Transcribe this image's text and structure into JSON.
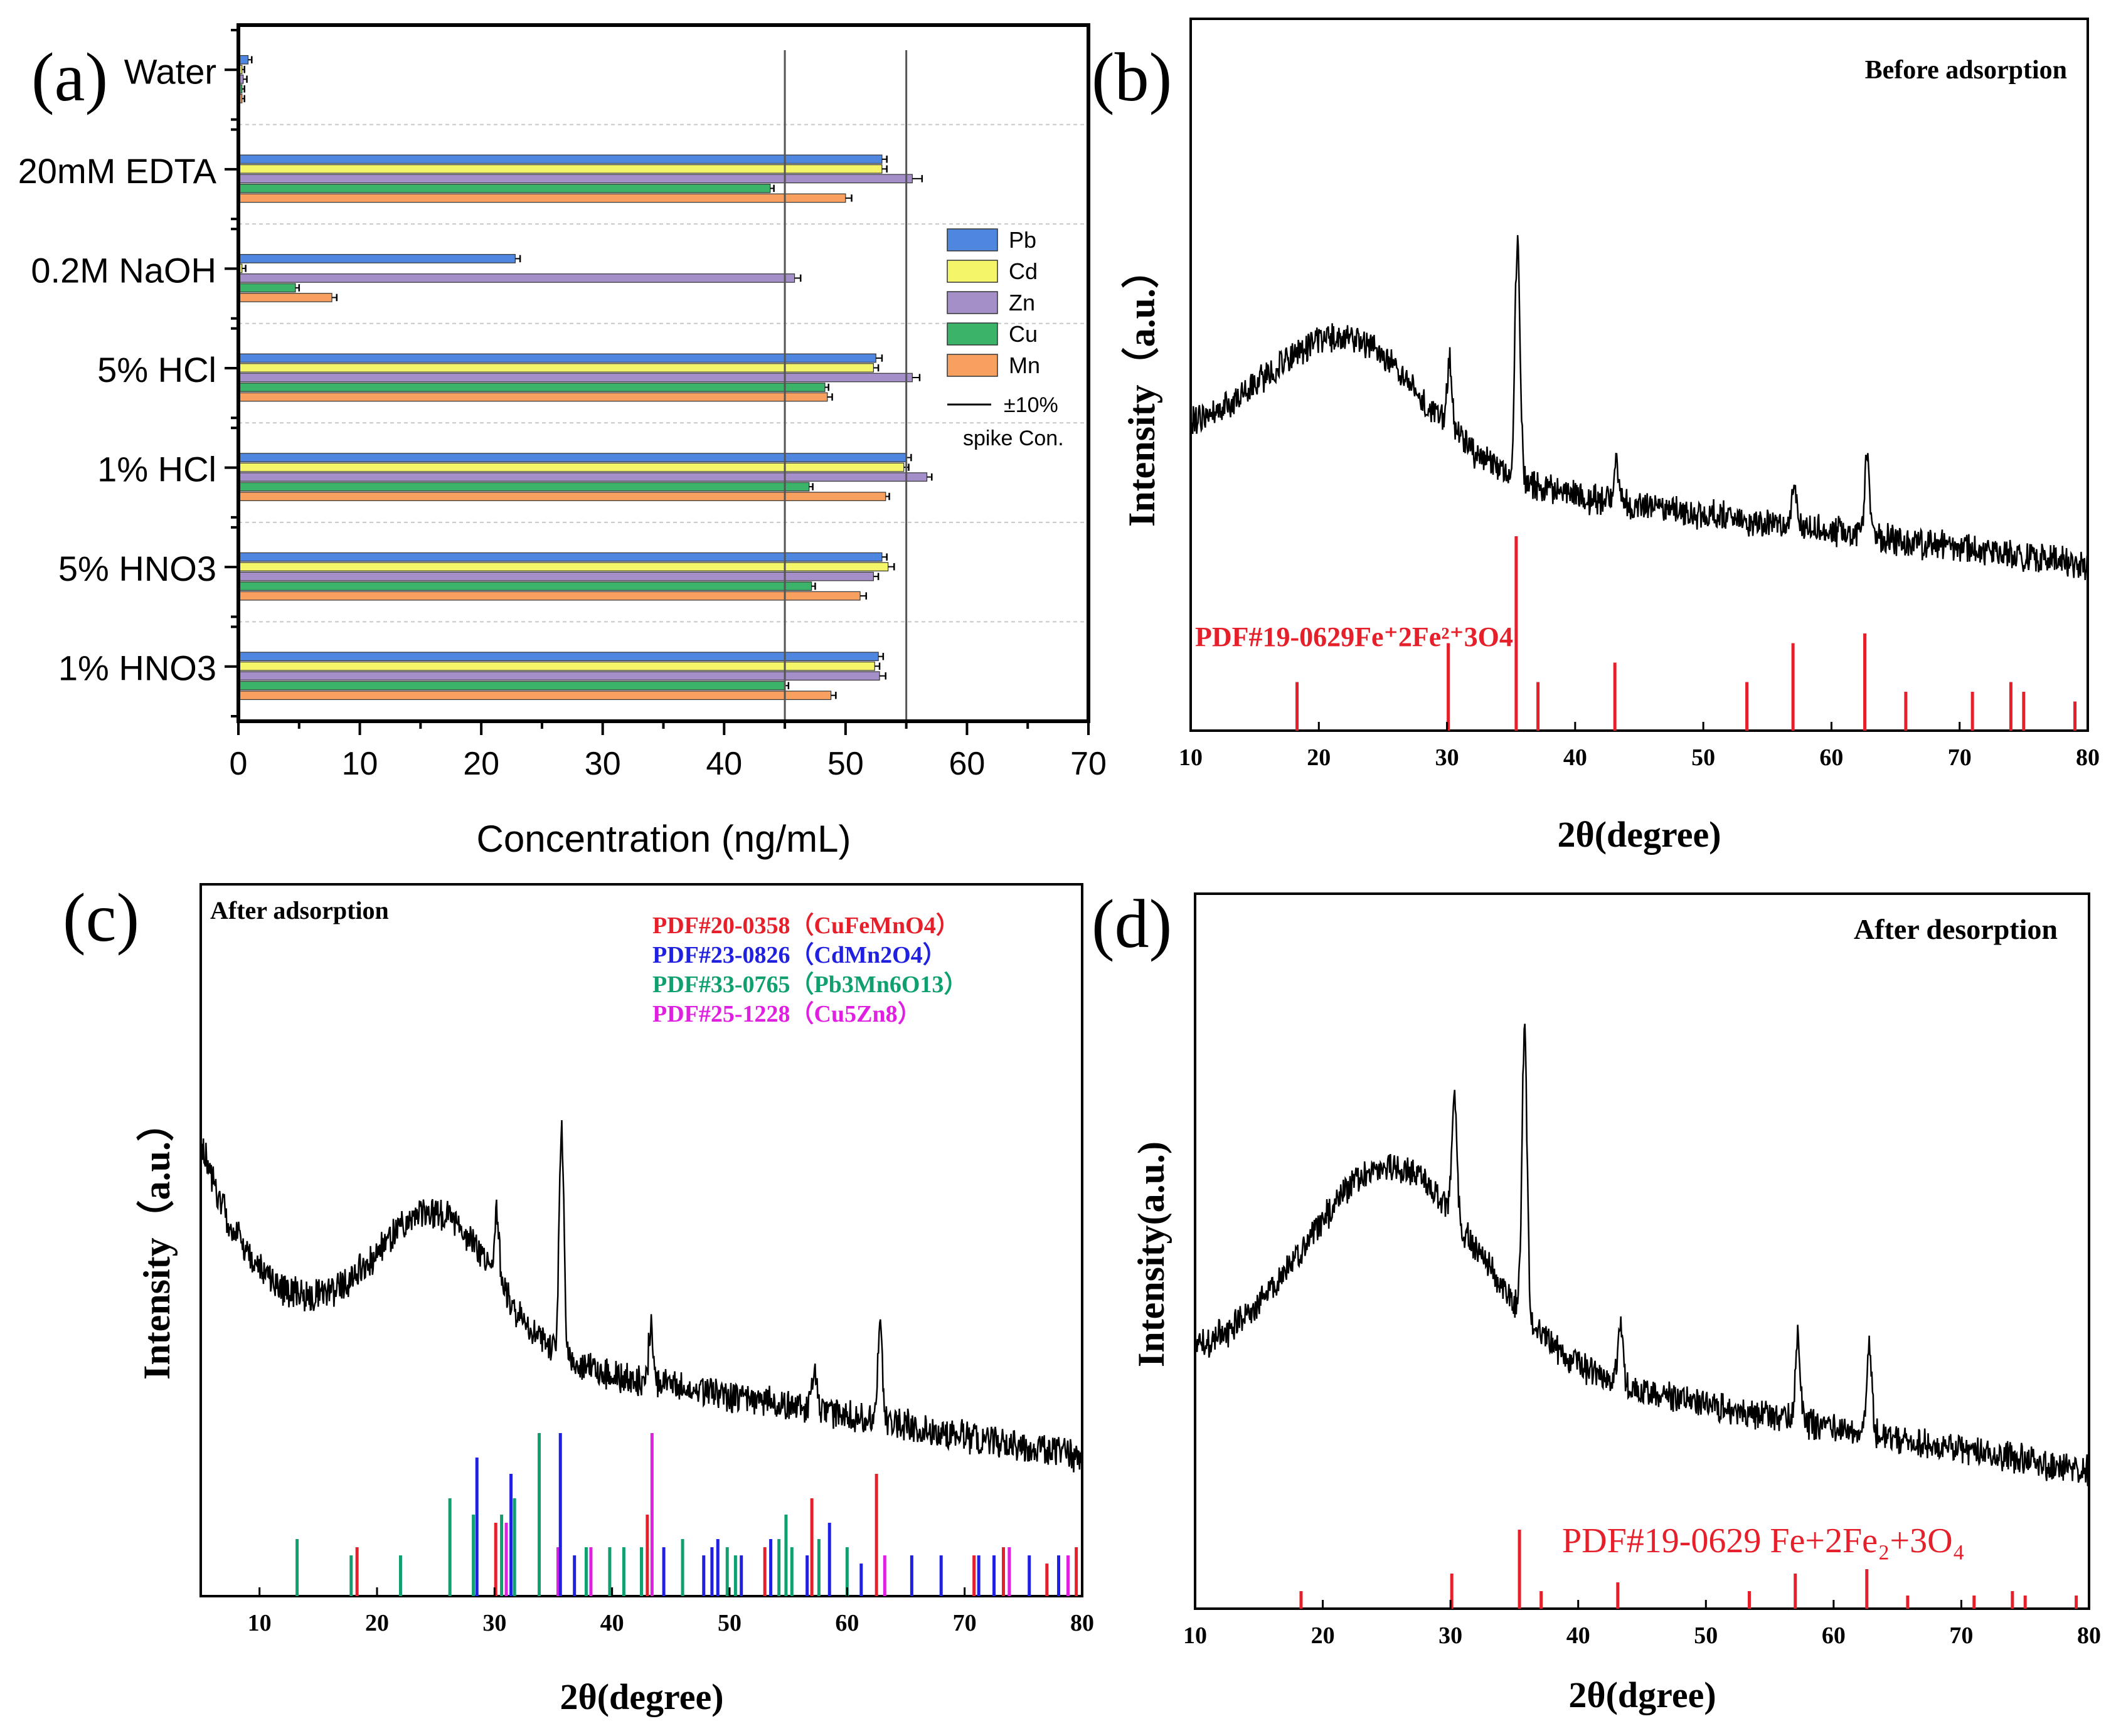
{
  "panel_a": {
    "panel_label": "(a)",
    "xlabel": "Concentration (ng/mL)",
    "legend_spike": "±10%",
    "legend_spike2": "spike Con.",
    "chart_data": {
      "type": "bar",
      "orientation": "horizontal",
      "categories": [
        "Water",
        "20mM EDTA",
        "0.2M NaOH",
        "5% HCl",
        "1% HCl",
        "5% HNO3",
        "1% HNO3"
      ],
      "series": [
        {
          "name": "Pb",
          "color": "#4F86E0",
          "values": [
            0.8,
            53,
            22.8,
            52.5,
            55,
            53,
            52.7
          ],
          "errors": [
            0.3,
            0.4,
            0.4,
            0.5,
            0.4,
            0.4,
            0.4
          ]
        },
        {
          "name": "Cd",
          "color": "#F5F56A",
          "values": [
            0.3,
            53,
            0.3,
            52.3,
            54.8,
            53.5,
            52.4
          ],
          "errors": [
            0.2,
            0.4,
            0.3,
            0.4,
            0.4,
            0.5,
            0.4
          ]
        },
        {
          "name": "Zn",
          "color": "#A48FC9",
          "values": [
            0.4,
            55.5,
            45.8,
            55.5,
            56.7,
            52.3,
            52.8
          ],
          "errors": [
            0.3,
            0.8,
            0.5,
            0.6,
            0.4,
            0.4,
            0.5
          ]
        },
        {
          "name": "Cu",
          "color": "#3BB46A",
          "values": [
            0.3,
            43.8,
            4.7,
            48.3,
            47,
            47.2,
            45
          ],
          "errors": [
            0.2,
            0.3,
            0.3,
            0.3,
            0.3,
            0.3,
            0.3
          ]
        },
        {
          "name": "Mn",
          "color": "#F7A060",
          "values": [
            0.3,
            50,
            7.7,
            48.5,
            53.3,
            51.2,
            48.8
          ],
          "errors": [
            0.2,
            0.5,
            0.4,
            0.4,
            0.3,
            0.5,
            0.4
          ]
        }
      ],
      "reference_lines": [
        45,
        55
      ],
      "xlim": [
        0,
        70
      ],
      "xticks": [
        "0",
        "10",
        "20",
        "30",
        "40",
        "50",
        "60",
        "70"
      ],
      "legend_placement": "right"
    }
  },
  "panel_b": {
    "panel_label": "(b)",
    "title": "Before adsorption",
    "ylabel": "Intensity（a.u.）",
    "xlabel": "2θ(degree)",
    "ref_label": "PDF#19-0629Fe⁺2Fe²⁺3O4",
    "chart_data": {
      "type": "line",
      "xlim": [
        10,
        80
      ],
      "xticks": [
        "10",
        "20",
        "30",
        "40",
        "50",
        "60",
        "70",
        "80"
      ],
      "peaks": [
        {
          "x": 30.2,
          "h": 0.28
        },
        {
          "x": 35.5,
          "h": 1.0
        },
        {
          "x": 43.2,
          "h": 0.18
        },
        {
          "x": 57.1,
          "h": 0.2
        },
        {
          "x": 62.8,
          "h": 0.35
        }
      ],
      "reference_lines": [
        {
          "x": 18.3,
          "h": 0.25,
          "color": "#E5202A"
        },
        {
          "x": 30.1,
          "h": 0.45,
          "color": "#E5202A"
        },
        {
          "x": 35.4,
          "h": 1.0,
          "color": "#E5202A"
        },
        {
          "x": 37.1,
          "h": 0.25,
          "color": "#E5202A"
        },
        {
          "x": 43.1,
          "h": 0.35,
          "color": "#E5202A"
        },
        {
          "x": 53.4,
          "h": 0.25,
          "color": "#E5202A"
        },
        {
          "x": 57.0,
          "h": 0.45,
          "color": "#E5202A"
        },
        {
          "x": 62.6,
          "h": 0.5,
          "color": "#E5202A"
        },
        {
          "x": 65.8,
          "h": 0.2,
          "color": "#E5202A"
        },
        {
          "x": 71.0,
          "h": 0.2,
          "color": "#E5202A"
        },
        {
          "x": 74.0,
          "h": 0.25,
          "color": "#E5202A"
        },
        {
          "x": 75.0,
          "h": 0.2,
          "color": "#E5202A"
        },
        {
          "x": 79.0,
          "h": 0.15,
          "color": "#E5202A"
        }
      ]
    }
  },
  "panel_c": {
    "panel_label": "(c)",
    "title": "After adsorption",
    "ylabel": "Intensity（a.u.）",
    "xlabel": "2θ(degree)",
    "legend": [
      {
        "text": "PDF#20-0358（CuFeMnO4）",
        "color": "#E5202A"
      },
      {
        "text": "PDF#23-0826（CdMn2O4）",
        "color": "#2020E0"
      },
      {
        "text": "PDF#33-0765（Pb3Mn6O13）",
        "color": "#10A070"
      },
      {
        "text": "PDF#25-1228（Cu5Zn8）",
        "color": "#E020E0"
      }
    ],
    "chart_data": {
      "type": "line",
      "xlim": [
        5,
        80
      ],
      "xticks": [
        "10",
        "20",
        "30",
        "40",
        "50",
        "60",
        "70",
        "80"
      ],
      "peaks": [
        {
          "x": 30.2,
          "h": 0.25
        },
        {
          "x": 35.7,
          "h": 0.85
        },
        {
          "x": 43.3,
          "h": 0.2
        },
        {
          "x": 57.2,
          "h": 0.15
        },
        {
          "x": 62.8,
          "h": 0.35
        }
      ],
      "reference_lines": [
        {
          "x": 13.2,
          "h": 0.35,
          "color": "#10A070"
        },
        {
          "x": 17.8,
          "h": 0.25,
          "color": "#10A070"
        },
        {
          "x": 18.3,
          "h": 0.3,
          "color": "#E5202A"
        },
        {
          "x": 22.0,
          "h": 0.25,
          "color": "#10A070"
        },
        {
          "x": 26.2,
          "h": 0.6,
          "color": "#10A070"
        },
        {
          "x": 28.2,
          "h": 0.5,
          "color": "#10A070"
        },
        {
          "x": 28.5,
          "h": 0.85,
          "color": "#2020E0"
        },
        {
          "x": 30.1,
          "h": 0.45,
          "color": "#E5202A"
        },
        {
          "x": 30.6,
          "h": 0.5,
          "color": "#10A070"
        },
        {
          "x": 31.0,
          "h": 0.45,
          "color": "#E020E0"
        },
        {
          "x": 31.4,
          "h": 0.75,
          "color": "#2020E0"
        },
        {
          "x": 31.7,
          "h": 0.6,
          "color": "#10A070"
        },
        {
          "x": 33.8,
          "h": 1.0,
          "color": "#10A070"
        },
        {
          "x": 35.4,
          "h": 0.3,
          "color": "#E020E0"
        },
        {
          "x": 35.6,
          "h": 1.0,
          "color": "#2020E0"
        },
        {
          "x": 36.8,
          "h": 0.25,
          "color": "#2020E0"
        },
        {
          "x": 37.8,
          "h": 0.3,
          "color": "#10A070"
        },
        {
          "x": 38.2,
          "h": 0.3,
          "color": "#E020E0"
        },
        {
          "x": 39.8,
          "h": 0.3,
          "color": "#10A070"
        },
        {
          "x": 41.0,
          "h": 0.3,
          "color": "#10A070"
        },
        {
          "x": 42.5,
          "h": 0.3,
          "color": "#10A070"
        },
        {
          "x": 43.0,
          "h": 0.5,
          "color": "#E5202A"
        },
        {
          "x": 43.4,
          "h": 1.0,
          "color": "#E020E0"
        },
        {
          "x": 44.4,
          "h": 0.3,
          "color": "#2020E0"
        },
        {
          "x": 46.0,
          "h": 0.35,
          "color": "#10A070"
        },
        {
          "x": 47.8,
          "h": 0.25,
          "color": "#2020E0"
        },
        {
          "x": 48.5,
          "h": 0.3,
          "color": "#2020E0"
        },
        {
          "x": 49.0,
          "h": 0.35,
          "color": "#2020E0"
        },
        {
          "x": 49.8,
          "h": 0.3,
          "color": "#10A070"
        },
        {
          "x": 50.5,
          "h": 0.25,
          "color": "#10A070"
        },
        {
          "x": 51.0,
          "h": 0.25,
          "color": "#2020E0"
        },
        {
          "x": 53.0,
          "h": 0.3,
          "color": "#E5202A"
        },
        {
          "x": 53.5,
          "h": 0.35,
          "color": "#2020E0"
        },
        {
          "x": 54.2,
          "h": 0.35,
          "color": "#10A070"
        },
        {
          "x": 54.8,
          "h": 0.5,
          "color": "#10A070"
        },
        {
          "x": 55.3,
          "h": 0.3,
          "color": "#10A070"
        },
        {
          "x": 56.6,
          "h": 0.25,
          "color": "#2020E0"
        },
        {
          "x": 57.0,
          "h": 0.6,
          "color": "#E5202A"
        },
        {
          "x": 57.6,
          "h": 0.35,
          "color": "#10A070"
        },
        {
          "x": 58.5,
          "h": 0.45,
          "color": "#2020E0"
        },
        {
          "x": 60.0,
          "h": 0.3,
          "color": "#10A070"
        },
        {
          "x": 61.2,
          "h": 0.2,
          "color": "#2020E0"
        },
        {
          "x": 62.5,
          "h": 0.75,
          "color": "#E5202A"
        },
        {
          "x": 63.2,
          "h": 0.25,
          "color": "#E020E0"
        },
        {
          "x": 65.5,
          "h": 0.25,
          "color": "#2020E0"
        },
        {
          "x": 68.0,
          "h": 0.25,
          "color": "#2020E0"
        },
        {
          "x": 70.8,
          "h": 0.25,
          "color": "#E5202A"
        },
        {
          "x": 71.2,
          "h": 0.25,
          "color": "#2020E0"
        },
        {
          "x": 72.5,
          "h": 0.25,
          "color": "#2020E0"
        },
        {
          "x": 73.3,
          "h": 0.3,
          "color": "#E5202A"
        },
        {
          "x": 73.8,
          "h": 0.3,
          "color": "#E020E0"
        },
        {
          "x": 75.5,
          "h": 0.25,
          "color": "#2020E0"
        },
        {
          "x": 77.0,
          "h": 0.2,
          "color": "#E5202A"
        },
        {
          "x": 78.0,
          "h": 0.25,
          "color": "#2020E0"
        },
        {
          "x": 78.8,
          "h": 0.25,
          "color": "#E020E0"
        },
        {
          "x": 79.5,
          "h": 0.3,
          "color": "#E5202A"
        }
      ]
    }
  },
  "panel_d": {
    "panel_label": "(d)",
    "title": "After desorption",
    "ylabel": "Intensity(a.u.)",
    "xlabel": "2θ(dgree)",
    "ref_label": "PDF#19-0629 Fe+2Fe₂+3O₄",
    "chart_data": {
      "type": "line",
      "xlim": [
        10,
        80
      ],
      "xticks": [
        "10",
        "20",
        "30",
        "40",
        "50",
        "60",
        "70",
        "80"
      ],
      "peaks": [
        {
          "x": 30.3,
          "h": 0.4
        },
        {
          "x": 35.8,
          "h": 1.0
        },
        {
          "x": 43.3,
          "h": 0.2
        },
        {
          "x": 57.2,
          "h": 0.28
        },
        {
          "x": 62.8,
          "h": 0.3
        }
      ],
      "reference_lines": [
        {
          "x": 18.3,
          "h": 0.2,
          "color": "#E5202A"
        },
        {
          "x": 30.1,
          "h": 0.4,
          "color": "#E5202A"
        },
        {
          "x": 35.4,
          "h": 0.9,
          "color": "#E5202A"
        },
        {
          "x": 37.1,
          "h": 0.2,
          "color": "#E5202A"
        },
        {
          "x": 43.1,
          "h": 0.3,
          "color": "#E5202A"
        },
        {
          "x": 53.4,
          "h": 0.2,
          "color": "#E5202A"
        },
        {
          "x": 57.0,
          "h": 0.4,
          "color": "#E5202A"
        },
        {
          "x": 62.6,
          "h": 0.45,
          "color": "#E5202A"
        },
        {
          "x": 65.8,
          "h": 0.15,
          "color": "#E5202A"
        },
        {
          "x": 71.0,
          "h": 0.15,
          "color": "#E5202A"
        },
        {
          "x": 74.0,
          "h": 0.2,
          "color": "#E5202A"
        },
        {
          "x": 75.0,
          "h": 0.15,
          "color": "#E5202A"
        },
        {
          "x": 79.0,
          "h": 0.15,
          "color": "#E5202A"
        }
      ]
    }
  }
}
